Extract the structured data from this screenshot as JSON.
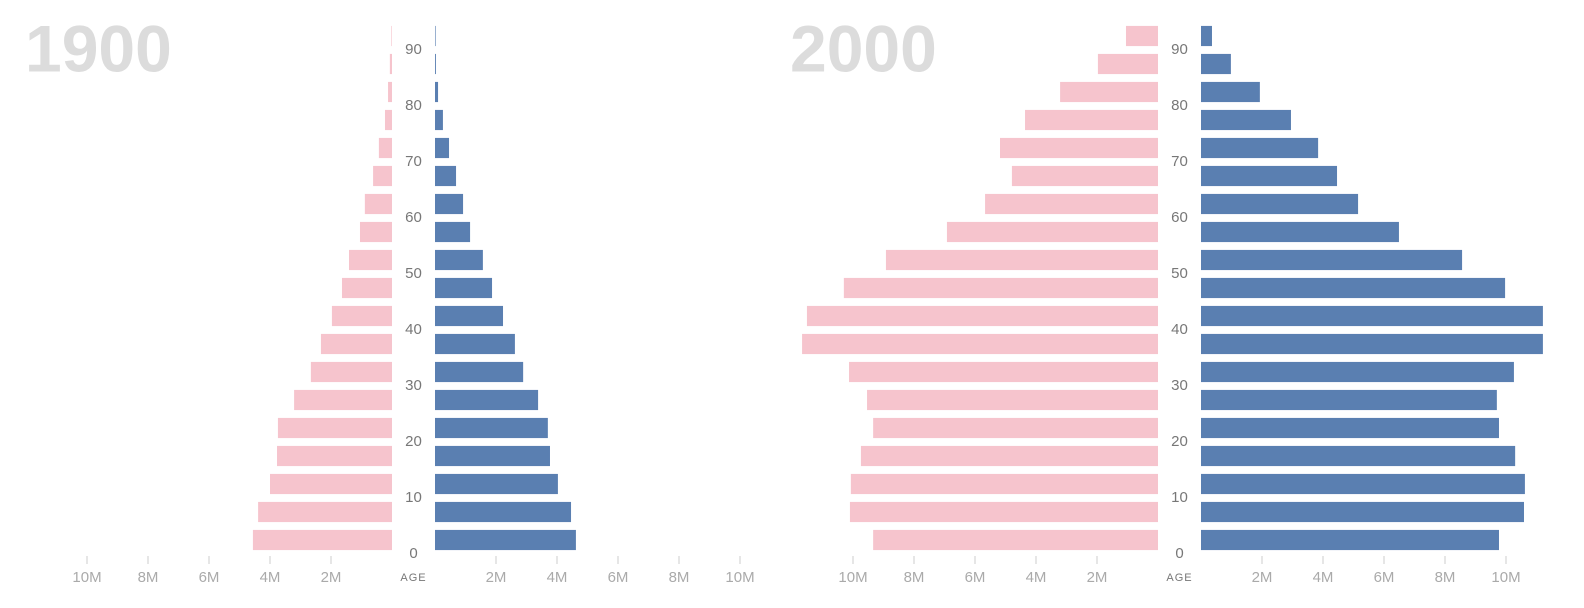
{
  "chart_data": [
    {
      "type": "pyramid",
      "title": "1900",
      "y_label": "AGE",
      "y": [
        0,
        5,
        10,
        15,
        20,
        25,
        30,
        35,
        40,
        45,
        50,
        55,
        60,
        65,
        70,
        75,
        80,
        85,
        90
      ],
      "series": [
        {
          "color": "#f6c4cd",
          "values": [
            4.56,
            4.39,
            4.0,
            3.77,
            3.74,
            3.21,
            2.66,
            2.33,
            1.97,
            1.64,
            1.41,
            1.05,
            0.89,
            0.62,
            0.43,
            0.23,
            0.13,
            0.07,
            0.02
          ]
        },
        {
          "color": "#5a7fb1",
          "values": [
            4.62,
            4.46,
            4.03,
            3.77,
            3.7,
            3.38,
            2.89,
            2.62,
            2.23,
            1.87,
            1.57,
            1.15,
            0.92,
            0.69,
            0.46,
            0.26,
            0.1,
            0.03,
            0.02
          ]
        }
      ],
      "xlim": [
        0,
        12
      ],
      "xticks": [
        {
          "value": 2,
          "label": "2M"
        },
        {
          "value": 4,
          "label": "4M"
        },
        {
          "value": 6,
          "label": "6M"
        },
        {
          "value": 8,
          "label": "8M"
        },
        {
          "value": 10,
          "label": "10M"
        }
      ],
      "ylim": [
        0,
        95
      ],
      "yticks": [
        0,
        10,
        20,
        30,
        40,
        50,
        60,
        70,
        80,
        90
      ]
    },
    {
      "type": "pyramid",
      "title": "2000",
      "y_label": "AGE",
      "y": [
        0,
        5,
        10,
        15,
        20,
        25,
        30,
        35,
        40,
        45,
        50,
        55,
        60,
        65,
        70,
        75,
        80,
        85,
        90
      ],
      "series": [
        {
          "color": "#f6c4cd",
          "values": [
            9.34,
            10.1,
            10.07,
            9.74,
            9.34,
            9.54,
            10.13,
            11.67,
            11.51,
            10.3,
            8.92,
            6.92,
            5.67,
            4.79,
            5.18,
            4.36,
            3.21,
            1.97,
            1.05
          ]
        },
        {
          "color": "#5a7fb1",
          "values": [
            9.77,
            10.59,
            10.62,
            10.3,
            9.77,
            9.7,
            10.26,
            11.21,
            11.21,
            9.97,
            8.56,
            6.49,
            5.15,
            4.46,
            3.84,
            2.95,
            1.93,
            0.98,
            0.36
          ]
        }
      ],
      "xlim": [
        0,
        12
      ],
      "xticks": [
        {
          "value": 2,
          "label": "2M"
        },
        {
          "value": 4,
          "label": "4M"
        },
        {
          "value": 6,
          "label": "6M"
        },
        {
          "value": 8,
          "label": "8M"
        },
        {
          "value": 10,
          "label": "10M"
        }
      ],
      "ylim": [
        0,
        95
      ],
      "yticks": [
        0,
        10,
        20,
        30,
        40,
        50,
        60,
        70,
        80,
        90
      ]
    }
  ]
}
